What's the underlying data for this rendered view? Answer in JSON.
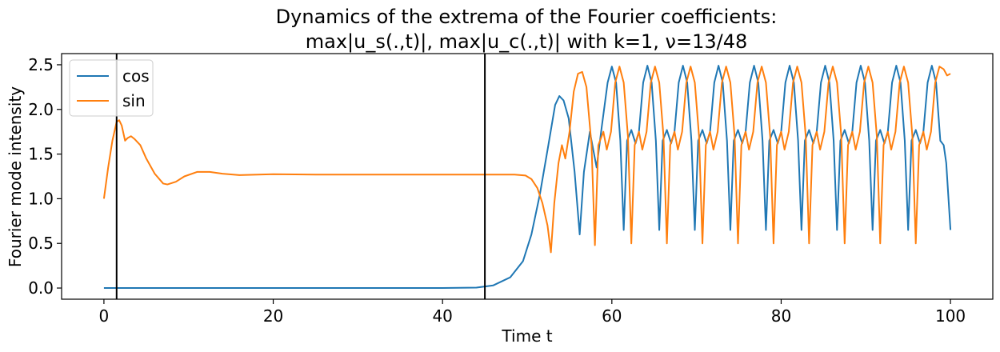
{
  "chart_data": {
    "type": "line",
    "title_line1": "Dynamics of the extrema of the Fourier coefficients:",
    "title_line2": "max|u_s(.,t)|, max|u_c(.,t)| with k=1, ν=13/48",
    "xlabel": "Time t",
    "ylabel": "Fourier mode intensity",
    "xlim": [
      -5,
      105
    ],
    "ylim": [
      -0.125,
      2.625
    ],
    "xticks": [
      0,
      20,
      40,
      60,
      80,
      100
    ],
    "yticks": [
      0.0,
      0.5,
      1.0,
      1.5,
      2.0,
      2.5
    ],
    "xtick_labels": [
      "0",
      "20",
      "40",
      "60",
      "80",
      "100"
    ],
    "ytick_labels": [
      "0.0",
      "0.5",
      "1.0",
      "1.5",
      "2.0",
      "2.5"
    ],
    "vlines": [
      1.5,
      45
    ],
    "vline_color": "#000000",
    "legend_position": "upper-left",
    "grid": false,
    "series": [
      {
        "name": "cos",
        "color": "#1f77b4",
        "points": [
          [
            0,
            0.0
          ],
          [
            10,
            0.0
          ],
          [
            20,
            0.0
          ],
          [
            30,
            0.0
          ],
          [
            40,
            0.0
          ],
          [
            44,
            0.005
          ],
          [
            46,
            0.03
          ],
          [
            48,
            0.12
          ],
          [
            49.5,
            0.3
          ],
          [
            50.5,
            0.6
          ],
          [
            51.5,
            1.05
          ],
          [
            52.5,
            1.6
          ],
          [
            53.3,
            2.05
          ],
          [
            53.8,
            2.15
          ],
          [
            54.3,
            2.1
          ],
          [
            54.9,
            1.9
          ],
          [
            55.6,
            1.3
          ],
          [
            56.2,
            0.6
          ],
          [
            56.7,
            1.3
          ],
          [
            57.4,
            1.75
          ],
          [
            58.2,
            1.35
          ],
          [
            58.8,
            1.8
          ],
          [
            59.5,
            2.3
          ],
          [
            60.0,
            2.48
          ],
          [
            60.5,
            2.3
          ],
          [
            61.0,
            1.65
          ],
          [
            61.4,
            0.65
          ],
          [
            61.8,
            1.65
          ],
          [
            62.3,
            1.77
          ],
          [
            62.8,
            1.62
          ],
          [
            63.2,
            1.75
          ],
          [
            63.7,
            2.3
          ],
          [
            64.2,
            2.49
          ],
          [
            64.7,
            2.3
          ],
          [
            65.2,
            1.65
          ],
          [
            65.6,
            0.65
          ],
          [
            66.0,
            1.65
          ],
          [
            66.5,
            1.77
          ],
          [
            67.0,
            1.62
          ],
          [
            67.4,
            1.75
          ],
          [
            67.9,
            2.3
          ],
          [
            68.4,
            2.49
          ],
          [
            68.9,
            2.3
          ],
          [
            69.4,
            1.65
          ],
          [
            69.8,
            0.65
          ],
          [
            70.2,
            1.65
          ],
          [
            70.7,
            1.77
          ],
          [
            71.2,
            1.62
          ],
          [
            71.6,
            1.75
          ],
          [
            72.1,
            2.3
          ],
          [
            72.6,
            2.49
          ],
          [
            73.1,
            2.3
          ],
          [
            73.6,
            1.65
          ],
          [
            74.0,
            0.65
          ],
          [
            74.4,
            1.65
          ],
          [
            74.9,
            1.77
          ],
          [
            75.4,
            1.62
          ],
          [
            75.8,
            1.75
          ],
          [
            76.3,
            2.3
          ],
          [
            76.8,
            2.49
          ],
          [
            77.3,
            2.3
          ],
          [
            77.8,
            1.65
          ],
          [
            78.2,
            0.65
          ],
          [
            78.6,
            1.65
          ],
          [
            79.1,
            1.77
          ],
          [
            79.6,
            1.62
          ],
          [
            80.0,
            1.75
          ],
          [
            80.5,
            2.3
          ],
          [
            81.0,
            2.49
          ],
          [
            81.5,
            2.3
          ],
          [
            82.0,
            1.65
          ],
          [
            82.4,
            0.65
          ],
          [
            82.8,
            1.65
          ],
          [
            83.3,
            1.77
          ],
          [
            83.8,
            1.62
          ],
          [
            84.2,
            1.75
          ],
          [
            84.7,
            2.3
          ],
          [
            85.2,
            2.49
          ],
          [
            85.7,
            2.3
          ],
          [
            86.2,
            1.65
          ],
          [
            86.6,
            0.65
          ],
          [
            87.0,
            1.65
          ],
          [
            87.5,
            1.77
          ],
          [
            88.0,
            1.62
          ],
          [
            88.4,
            1.75
          ],
          [
            88.9,
            2.3
          ],
          [
            89.4,
            2.49
          ],
          [
            89.9,
            2.3
          ],
          [
            90.4,
            1.65
          ],
          [
            90.8,
            0.65
          ],
          [
            91.2,
            1.65
          ],
          [
            91.7,
            1.77
          ],
          [
            92.2,
            1.62
          ],
          [
            92.6,
            1.75
          ],
          [
            93.1,
            2.3
          ],
          [
            93.6,
            2.49
          ],
          [
            94.1,
            2.3
          ],
          [
            94.6,
            1.65
          ],
          [
            95.0,
            0.65
          ],
          [
            95.4,
            1.65
          ],
          [
            95.9,
            1.77
          ],
          [
            96.4,
            1.62
          ],
          [
            96.8,
            1.75
          ],
          [
            97.3,
            2.3
          ],
          [
            97.8,
            2.49
          ],
          [
            98.3,
            2.3
          ],
          [
            98.8,
            1.65
          ],
          [
            99.2,
            1.6
          ],
          [
            99.5,
            1.4
          ],
          [
            100.0,
            0.65
          ]
        ]
      },
      {
        "name": "sin",
        "color": "#ff7f0e",
        "points": [
          [
            0,
            1.0
          ],
          [
            0.5,
            1.35
          ],
          [
            1.0,
            1.65
          ],
          [
            1.5,
            1.86
          ],
          [
            1.8,
            1.88
          ],
          [
            2.1,
            1.82
          ],
          [
            2.5,
            1.65
          ],
          [
            2.8,
            1.68
          ],
          [
            3.2,
            1.7
          ],
          [
            3.6,
            1.67
          ],
          [
            4.3,
            1.6
          ],
          [
            5.0,
            1.45
          ],
          [
            6.0,
            1.28
          ],
          [
            7.0,
            1.17
          ],
          [
            7.5,
            1.16
          ],
          [
            8.5,
            1.19
          ],
          [
            9.5,
            1.25
          ],
          [
            11.0,
            1.3
          ],
          [
            12.5,
            1.3
          ],
          [
            14.0,
            1.28
          ],
          [
            16.0,
            1.265
          ],
          [
            20.0,
            1.275
          ],
          [
            25.0,
            1.27
          ],
          [
            30.0,
            1.27
          ],
          [
            40.0,
            1.27
          ],
          [
            46.0,
            1.27
          ],
          [
            48.5,
            1.27
          ],
          [
            49.8,
            1.26
          ],
          [
            50.5,
            1.22
          ],
          [
            51.2,
            1.12
          ],
          [
            51.8,
            0.95
          ],
          [
            52.4,
            0.7
          ],
          [
            52.8,
            0.4
          ],
          [
            53.2,
            0.95
          ],
          [
            53.7,
            1.4
          ],
          [
            54.1,
            1.6
          ],
          [
            54.5,
            1.45
          ],
          [
            55.0,
            1.75
          ],
          [
            55.5,
            2.2
          ],
          [
            56.0,
            2.4
          ],
          [
            56.5,
            2.42
          ],
          [
            57.0,
            2.25
          ],
          [
            57.6,
            1.6
          ],
          [
            58.0,
            0.48
          ],
          [
            58.4,
            1.6
          ],
          [
            59.0,
            1.75
          ],
          [
            59.4,
            1.55
          ],
          [
            59.9,
            1.75
          ],
          [
            60.4,
            2.3
          ],
          [
            60.9,
            2.48
          ],
          [
            61.4,
            2.3
          ],
          [
            61.9,
            1.7
          ],
          [
            62.3,
            0.5
          ],
          [
            62.7,
            1.6
          ],
          [
            63.2,
            1.75
          ],
          [
            63.6,
            1.55
          ],
          [
            64.1,
            1.75
          ],
          [
            64.6,
            2.3
          ],
          [
            65.1,
            2.48
          ],
          [
            65.6,
            2.3
          ],
          [
            66.1,
            1.7
          ],
          [
            66.5,
            0.5
          ],
          [
            66.9,
            1.6
          ],
          [
            67.4,
            1.75
          ],
          [
            67.8,
            1.55
          ],
          [
            68.3,
            1.75
          ],
          [
            68.8,
            2.3
          ],
          [
            69.3,
            2.48
          ],
          [
            69.8,
            2.3
          ],
          [
            70.3,
            1.7
          ],
          [
            70.7,
            0.5
          ],
          [
            71.1,
            1.6
          ],
          [
            71.6,
            1.75
          ],
          [
            72.0,
            1.55
          ],
          [
            72.5,
            1.75
          ],
          [
            73.0,
            2.3
          ],
          [
            73.5,
            2.48
          ],
          [
            74.0,
            2.3
          ],
          [
            74.5,
            1.7
          ],
          [
            74.9,
            0.5
          ],
          [
            75.3,
            1.6
          ],
          [
            75.8,
            1.75
          ],
          [
            76.2,
            1.55
          ],
          [
            76.7,
            1.75
          ],
          [
            77.2,
            2.3
          ],
          [
            77.7,
            2.48
          ],
          [
            78.2,
            2.3
          ],
          [
            78.7,
            1.7
          ],
          [
            79.1,
            0.5
          ],
          [
            79.5,
            1.6
          ],
          [
            80.0,
            1.75
          ],
          [
            80.4,
            1.55
          ],
          [
            80.9,
            1.75
          ],
          [
            81.4,
            2.3
          ],
          [
            81.9,
            2.48
          ],
          [
            82.4,
            2.3
          ],
          [
            82.9,
            1.7
          ],
          [
            83.3,
            0.5
          ],
          [
            83.7,
            1.6
          ],
          [
            84.2,
            1.75
          ],
          [
            84.6,
            1.55
          ],
          [
            85.1,
            1.75
          ],
          [
            85.6,
            2.3
          ],
          [
            86.1,
            2.48
          ],
          [
            86.6,
            2.3
          ],
          [
            87.1,
            1.7
          ],
          [
            87.5,
            0.5
          ],
          [
            87.9,
            1.6
          ],
          [
            88.4,
            1.75
          ],
          [
            88.8,
            1.55
          ],
          [
            89.3,
            1.75
          ],
          [
            89.8,
            2.3
          ],
          [
            90.3,
            2.48
          ],
          [
            90.8,
            2.3
          ],
          [
            91.3,
            1.7
          ],
          [
            91.7,
            0.5
          ],
          [
            92.1,
            1.6
          ],
          [
            92.6,
            1.75
          ],
          [
            93.0,
            1.55
          ],
          [
            93.5,
            1.75
          ],
          [
            94.0,
            2.3
          ],
          [
            94.5,
            2.48
          ],
          [
            95.0,
            2.3
          ],
          [
            95.5,
            1.7
          ],
          [
            95.9,
            0.5
          ],
          [
            96.3,
            1.6
          ],
          [
            96.8,
            1.75
          ],
          [
            97.2,
            1.55
          ],
          [
            97.7,
            1.75
          ],
          [
            98.2,
            2.3
          ],
          [
            98.7,
            2.48
          ],
          [
            99.2,
            2.45
          ],
          [
            99.6,
            2.38
          ],
          [
            100.0,
            2.4
          ]
        ]
      }
    ]
  }
}
